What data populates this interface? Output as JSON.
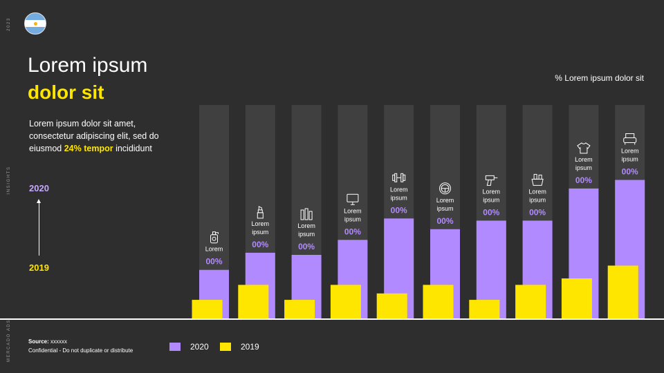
{
  "sidebar": {
    "year": "2023",
    "section": "INSIGHTS",
    "brand": "MERCADO ADS"
  },
  "header": {
    "title_line1": "Lorem ipsum",
    "title_line2": "dolor sit"
  },
  "description": {
    "text_before": "Lorem ipsum dolor sit amet, consectetur adipiscing elit, sed do eiusmod ",
    "highlight": "24% tempor",
    "text_after": " incididunt"
  },
  "years": {
    "top": "2020",
    "bottom": "2019"
  },
  "unit_label": "% Lorem ipsum dolor sit",
  "footer": {
    "source_label": "Source:",
    "source_value": "xxxxxx",
    "confidential": "Confidential - Do not duplicate or distribute"
  },
  "colors": {
    "background": "#2e2e2e",
    "series_2020": "#b28aff",
    "series_2019": "#ffe600",
    "track": "#404040",
    "label": "#b28aff"
  },
  "chart_data": {
    "type": "bar",
    "title": "",
    "xlabel": "",
    "ylabel": "% Lorem ipsum dolor sit",
    "ylim": [
      0,
      100
    ],
    "categories": [
      {
        "label": "Lorem",
        "icon": "bottle-icon"
      },
      {
        "label": "Lorem ipsum",
        "icon": "lipstick-icon"
      },
      {
        "label": "Lorem ipsum",
        "icon": "tools-icon"
      },
      {
        "label": "Lorem ipsum",
        "icon": "monitor-icon"
      },
      {
        "label": "Lorem ipsum",
        "icon": "dumbbell-icon"
      },
      {
        "label": "Lorem ipsum",
        "icon": "steering-wheel-icon"
      },
      {
        "label": "Lorem ipsum",
        "icon": "drill-icon"
      },
      {
        "label": "Lorem ipsum",
        "icon": "groceries-icon"
      },
      {
        "label": "Lorem ipsum",
        "icon": "shirt-icon"
      },
      {
        "label": "Lorem ipsum",
        "icon": "armchair-icon"
      }
    ],
    "value_labels": [
      "00%",
      "00%",
      "00%",
      "00%",
      "00%",
      "00%",
      "00%",
      "00%",
      "00%",
      "00%"
    ],
    "series": [
      {
        "name": "2020",
        "values": [
          23,
          31,
          30,
          37,
          47,
          42,
          46,
          46,
          61,
          65
        ]
      },
      {
        "name": "2019",
        "values": [
          9,
          16,
          9,
          16,
          12,
          16,
          9,
          16,
          19,
          25
        ]
      }
    ],
    "legend": "bottom-left",
    "grid": false
  }
}
